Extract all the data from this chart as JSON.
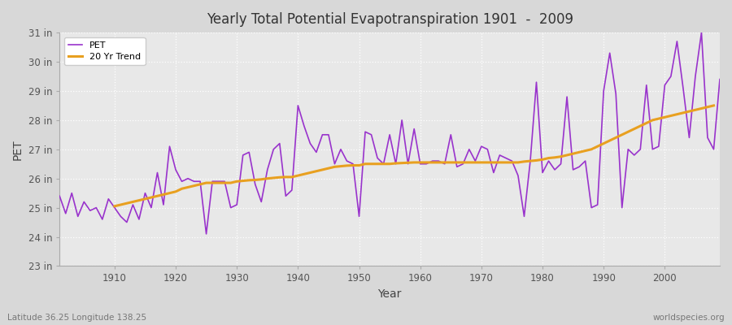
{
  "title": "Yearly Total Potential Evapotranspiration 1901  -  2009",
  "xlabel": "Year",
  "ylabel": "PET",
  "footnote_left": "Latitude 36.25 Longitude 138.25",
  "footnote_right": "worldspecies.org",
  "pet_color": "#9933cc",
  "trend_color": "#e8a020",
  "fig_bg_color": "#d8d8d8",
  "plot_bg_color": "#e8e8e8",
  "ylim": [
    23,
    31
  ],
  "yticks": [
    23,
    24,
    25,
    26,
    27,
    28,
    29,
    30,
    31
  ],
  "ytick_labels": [
    "23 in",
    "24 in",
    "25 in",
    "26 in",
    "27 in",
    "28 in",
    "29 in",
    "30 in",
    "31 in"
  ],
  "years": [
    1901,
    1902,
    1903,
    1904,
    1905,
    1906,
    1907,
    1908,
    1909,
    1910,
    1911,
    1912,
    1913,
    1914,
    1915,
    1916,
    1917,
    1918,
    1919,
    1920,
    1921,
    1922,
    1923,
    1924,
    1925,
    1926,
    1927,
    1928,
    1929,
    1930,
    1931,
    1932,
    1933,
    1934,
    1935,
    1936,
    1937,
    1938,
    1939,
    1940,
    1941,
    1942,
    1943,
    1944,
    1945,
    1946,
    1947,
    1948,
    1949,
    1950,
    1951,
    1952,
    1953,
    1954,
    1955,
    1956,
    1957,
    1958,
    1959,
    1960,
    1961,
    1962,
    1963,
    1964,
    1965,
    1966,
    1967,
    1968,
    1969,
    1970,
    1971,
    1972,
    1973,
    1974,
    1975,
    1976,
    1977,
    1978,
    1979,
    1980,
    1981,
    1982,
    1983,
    1984,
    1985,
    1986,
    1987,
    1988,
    1989,
    1990,
    1991,
    1992,
    1993,
    1994,
    1995,
    1996,
    1997,
    1998,
    1999,
    2000,
    2001,
    2002,
    2003,
    2004,
    2005,
    2006,
    2007,
    2008,
    2009
  ],
  "pet_values": [
    25.4,
    24.8,
    25.5,
    24.7,
    25.2,
    24.9,
    25.0,
    24.6,
    25.3,
    25.0,
    24.7,
    24.5,
    25.1,
    24.6,
    25.5,
    25.0,
    26.2,
    25.1,
    27.1,
    26.3,
    25.9,
    26.0,
    25.9,
    25.9,
    24.1,
    25.9,
    25.9,
    25.9,
    25.0,
    25.1,
    26.8,
    26.9,
    25.8,
    25.2,
    26.3,
    27.0,
    27.2,
    25.4,
    25.6,
    28.5,
    27.8,
    27.2,
    26.9,
    27.5,
    27.5,
    26.5,
    27.0,
    26.6,
    26.5,
    24.7,
    27.6,
    27.5,
    26.7,
    26.5,
    27.5,
    26.5,
    28.0,
    26.5,
    27.7,
    26.5,
    26.5,
    26.6,
    26.6,
    26.5,
    27.5,
    26.4,
    26.5,
    27.0,
    26.6,
    27.1,
    27.0,
    26.2,
    26.8,
    26.7,
    26.6,
    26.1,
    24.7,
    26.6,
    29.3,
    26.2,
    26.6,
    26.3,
    26.5,
    28.8,
    26.3,
    26.4,
    26.6,
    25.0,
    25.1,
    29.0,
    30.3,
    28.9,
    25.0,
    27.0,
    26.8,
    27.0,
    29.2,
    27.0,
    27.1,
    29.2,
    29.5,
    30.7,
    29.1,
    27.4,
    29.5,
    31.0,
    27.4,
    27.0,
    29.4
  ],
  "trend_values": [
    null,
    null,
    null,
    null,
    null,
    null,
    null,
    null,
    null,
    25.05,
    25.1,
    25.15,
    25.2,
    25.25,
    25.3,
    25.35,
    25.4,
    25.45,
    25.5,
    25.55,
    25.65,
    25.7,
    25.75,
    25.8,
    25.85,
    25.85,
    25.85,
    25.85,
    25.85,
    25.9,
    25.92,
    25.94,
    25.95,
    25.97,
    26.0,
    26.02,
    26.04,
    26.05,
    26.05,
    26.1,
    26.15,
    26.2,
    26.25,
    26.3,
    26.35,
    26.4,
    26.42,
    26.44,
    26.45,
    26.45,
    26.5,
    26.5,
    26.5,
    26.5,
    26.5,
    26.52,
    26.53,
    26.54,
    26.55,
    26.55,
    26.55,
    26.55,
    26.55,
    26.55,
    26.55,
    26.55,
    26.55,
    26.55,
    26.55,
    26.55,
    26.55,
    26.55,
    26.55,
    26.55,
    26.55,
    26.55,
    26.58,
    26.6,
    26.62,
    26.65,
    26.7,
    26.72,
    26.75,
    26.8,
    26.85,
    26.9,
    26.95,
    27.0,
    27.1,
    27.2,
    27.3,
    27.4,
    27.5,
    27.6,
    27.7,
    27.8,
    27.9,
    28.0,
    28.05,
    28.1,
    28.15,
    28.2,
    28.25,
    28.3,
    28.35,
    28.4,
    28.45,
    28.5
  ]
}
